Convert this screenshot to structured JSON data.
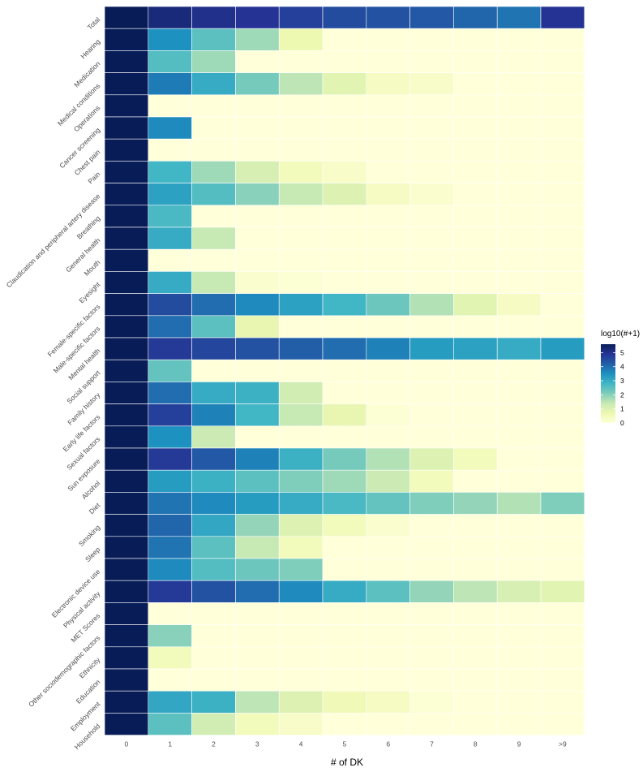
{
  "chart_data": {
    "type": "heatmap",
    "xlabel": "# of DK",
    "x_categories": [
      "0",
      "1",
      "2",
      "3",
      "4",
      "5",
      "6",
      "7",
      "8",
      "9",
      ">9"
    ],
    "y_categories": [
      "Total",
      "Hearing",
      "Medication",
      "Medical conditions",
      "Operations",
      "Cancer screening",
      "Chest pain",
      "Pain",
      "Claudication and peripheral artery disease",
      "Breathing",
      "General health",
      "Mouth",
      "Eyesight",
      "Female-specific factors",
      "Male-specific factors",
      "Mental health",
      "Social support",
      "Family history",
      "Early life factors",
      "Sexual factors",
      "Sun exposure",
      "Alcohol",
      "Diet",
      "Smoking",
      "Sleep",
      "Electronic device use",
      "Physical activity",
      "MET Scores",
      "Other sociodemographic factors",
      "Ethnicity",
      "Education",
      "Employment",
      "Household"
    ],
    "values": [
      [
        5.6,
        5.2,
        5.0,
        4.9,
        4.7,
        4.5,
        4.4,
        4.3,
        4.1,
        3.9,
        4.9
      ],
      [
        5.6,
        3.5,
        2.5,
        1.8,
        0.7,
        0,
        0,
        0,
        0,
        0,
        0
      ],
      [
        5.6,
        2.6,
        1.8,
        0,
        0,
        0,
        0,
        0,
        0,
        0,
        0
      ],
      [
        5.6,
        3.8,
        3.0,
        2.2,
        1.5,
        0.9,
        0.4,
        0.3,
        0,
        0,
        0
      ],
      [
        5.6,
        0,
        0,
        0,
        0,
        0,
        0,
        0,
        0,
        0,
        0
      ],
      [
        5.6,
        3.6,
        0,
        0,
        0,
        0,
        0,
        0,
        0,
        0,
        0
      ],
      [
        5.6,
        0,
        0,
        0,
        0,
        0,
        0,
        0,
        0,
        0,
        0
      ],
      [
        5.6,
        2.8,
        1.8,
        1.1,
        0.5,
        0.3,
        0,
        0,
        0,
        0,
        0
      ],
      [
        5.6,
        3.2,
        2.6,
        2.0,
        1.4,
        1.0,
        0.4,
        0.2,
        0,
        0,
        0
      ],
      [
        5.6,
        2.7,
        0,
        0,
        0,
        0,
        0,
        0,
        0,
        0,
        0
      ],
      [
        5.6,
        3.0,
        1.4,
        0,
        0,
        0,
        0,
        0,
        0,
        0,
        0
      ],
      [
        5.6,
        0,
        0,
        0,
        0,
        0,
        0,
        0,
        0,
        0,
        0
      ],
      [
        5.6,
        3.0,
        1.4,
        0.2,
        0.1,
        0,
        0,
        0,
        0,
        0,
        0
      ],
      [
        5.6,
        4.5,
        4.0,
        3.6,
        3.2,
        2.8,
        2.3,
        1.6,
        0.9,
        0.4,
        0
      ],
      [
        5.6,
        4.0,
        2.5,
        0.8,
        0,
        0,
        0,
        0,
        0,
        0,
        0
      ],
      [
        5.6,
        4.8,
        4.6,
        4.4,
        4.2,
        4.0,
        3.7,
        3.3,
        3.2,
        3.0,
        3.3
      ],
      [
        5.6,
        2.4,
        0,
        0,
        0,
        0,
        0,
        0,
        0,
        0,
        0
      ],
      [
        5.6,
        4.0,
        3.0,
        2.9,
        1.2,
        0,
        0,
        0,
        0,
        0,
        0
      ],
      [
        5.6,
        4.7,
        3.7,
        2.8,
        1.4,
        0.8,
        0.1,
        0,
        0,
        0,
        0
      ],
      [
        5.6,
        3.5,
        1.3,
        0,
        0,
        0,
        0,
        0,
        0,
        0,
        0
      ],
      [
        5.6,
        4.8,
        4.3,
        3.7,
        2.9,
        2.2,
        1.6,
        1.0,
        0.5,
        0,
        0
      ],
      [
        5.6,
        3.3,
        2.9,
        2.5,
        2.1,
        1.8,
        1.3,
        0.5,
        0,
        0,
        0
      ],
      [
        5.6,
        3.9,
        3.6,
        3.3,
        3.0,
        2.7,
        2.4,
        2.1,
        1.9,
        1.6,
        2.1
      ],
      [
        5.6,
        4.1,
        3.1,
        1.9,
        1.0,
        0.5,
        0.2,
        0,
        0,
        0,
        0
      ],
      [
        5.6,
        3.9,
        2.5,
        1.4,
        0.5,
        0,
        0,
        0,
        0,
        0,
        0
      ],
      [
        5.6,
        3.6,
        2.6,
        2.3,
        2.1,
        0,
        0,
        0,
        0,
        0,
        0
      ],
      [
        5.6,
        4.8,
        4.4,
        4.0,
        3.6,
        3.0,
        2.5,
        1.9,
        1.5,
        1.1,
        0.9
      ],
      [
        5.6,
        0,
        0,
        0,
        0,
        0,
        0,
        0,
        0,
        0,
        0
      ],
      [
        5.6,
        2.0,
        0,
        0,
        0,
        0,
        0,
        0,
        0,
        0,
        0
      ],
      [
        5.6,
        0.5,
        0,
        0,
        0,
        0,
        0,
        0,
        0,
        0,
        0
      ],
      [
        5.6,
        0,
        0,
        0,
        0,
        0,
        0,
        0,
        0,
        0,
        0
      ],
      [
        5.6,
        3.1,
        2.9,
        1.5,
        1.0,
        0.6,
        0.4,
        0.1,
        0,
        0,
        0
      ],
      [
        5.6,
        2.5,
        1.2,
        0.5,
        0.3,
        0,
        0,
        0,
        0,
        0,
        0
      ]
    ],
    "legend": {
      "title": "log10(#+1)",
      "ticks": [
        5,
        4,
        3,
        2,
        1,
        0
      ],
      "range": [
        0,
        5.6
      ],
      "colors": [
        "#ffffd9",
        "#edf8b1",
        "#c7e9b4",
        "#7fcdbb",
        "#41b6c4",
        "#1d91c0",
        "#225ea8",
        "#253494",
        "#081d58"
      ]
    },
    "grid": false,
    "legend_position": "right"
  }
}
